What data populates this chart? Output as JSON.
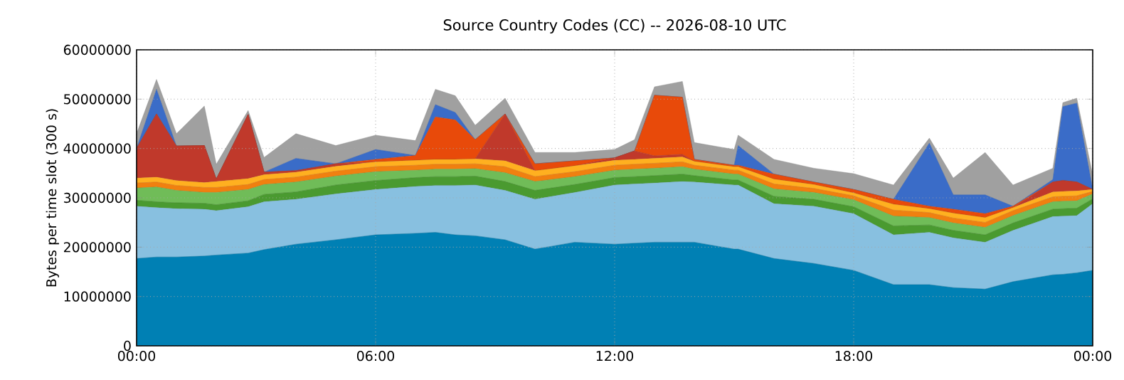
{
  "chart_data": {
    "type": "area",
    "stacked": true,
    "title": "Source Country Codes (CC) -- 2026-08-10 UTC",
    "ylabel": "Bytes per time slot (300 s)",
    "x": [
      0,
      0.5,
      1,
      1.7,
      2,
      2.8,
      3.2,
      4,
      5,
      6,
      7,
      7.5,
      8,
      8.5,
      9.25,
      10,
      11,
      12,
      12.5,
      13,
      13.7,
      14,
      15,
      15.1,
      16,
      17,
      18,
      19,
      19.9,
      20.5,
      21.3,
      22,
      23,
      23.25,
      23.6,
      24
    ],
    "xlim": [
      0,
      24
    ],
    "xticks": [
      {
        "value": 0,
        "label": "00:00"
      },
      {
        "value": 6,
        "label": "06:00"
      },
      {
        "value": 12,
        "label": "12:00"
      },
      {
        "value": 18,
        "label": "18:00"
      },
      {
        "value": 24,
        "label": "00:00"
      }
    ],
    "ylim": [
      0,
      60000000
    ],
    "yticks": [
      0,
      10000000,
      20000000,
      30000000,
      40000000,
      50000000,
      60000000
    ],
    "grid": true,
    "series": [
      {
        "color": "#0080b4",
        "values": [
          17700000,
          18000000,
          18000000,
          18200000,
          18400000,
          18800000,
          19500000,
          20600000,
          21500000,
          22500000,
          22800000,
          23000000,
          22500000,
          22300000,
          21500000,
          19600000,
          21000000,
          20600000,
          20800000,
          21000000,
          21000000,
          21000000,
          19600000,
          19600000,
          17700000,
          16700000,
          15300000,
          12400000,
          12400000,
          11800000,
          11500000,
          13000000,
          14400000,
          14500000,
          14800000,
          15300000
        ]
      },
      {
        "color": "#88c0e0",
        "values": [
          10600000,
          10000000,
          9800000,
          9500000,
          9000000,
          9400000,
          9700000,
          9100000,
          9300000,
          9200000,
          9500000,
          9500000,
          10000000,
          10300000,
          10000000,
          10100000,
          10100000,
          12000000,
          12000000,
          12000000,
          12300000,
          12200000,
          13000000,
          13000000,
          11100000,
          11600000,
          11500000,
          10100000,
          10600000,
          10100000,
          9500000,
          10400000,
          11800000,
          11800000,
          11600000,
          13500000
        ]
      },
      {
        "color": "#4a9a30",
        "values": [
          1200000,
          1200000,
          1200000,
          1200000,
          1200000,
          1200000,
          1500000,
          1500000,
          1800000,
          1800000,
          1800000,
          1800000,
          1800000,
          1800000,
          1800000,
          1800000,
          1600000,
          1500000,
          1500000,
          1500000,
          1500000,
          1300000,
          1000000,
          1000000,
          1500000,
          1400000,
          1400000,
          1800000,
          1500000,
          1500000,
          1500000,
          1500000,
          1500000,
          1500000,
          1500000,
          1000000
        ]
      },
      {
        "color": "#70bc58",
        "values": [
          2500000,
          3000000,
          2500000,
          2200000,
          2500000,
          2300000,
          2000000,
          2000000,
          1800000,
          1800000,
          1500000,
          1500000,
          1500000,
          1500000,
          1800000,
          1800000,
          1600000,
          1500000,
          1500000,
          1500000,
          1500000,
          1300000,
          1200000,
          1200000,
          1500000,
          1400000,
          1400000,
          2000000,
          1500000,
          1500000,
          1500000,
          1500000,
          1500000,
          1500000,
          1500000,
          1000000
        ]
      },
      {
        "color": "#f08010",
        "values": [
          1000000,
          1000000,
          1000000,
          1000000,
          1000000,
          1000000,
          1000000,
          1000000,
          1000000,
          1000000,
          1000000,
          1000000,
          1000000,
          1000000,
          1200000,
          1000000,
          1000000,
          1000000,
          1000000,
          1000000,
          1000000,
          800000,
          800000,
          800000,
          1000000,
          800000,
          800000,
          1200000,
          1000000,
          1000000,
          1000000,
          1000000,
          1000000,
          1000000,
          1000000,
          500000
        ]
      },
      {
        "color": "#ffb020",
        "values": [
          1000000,
          1000000,
          1000000,
          1000000,
          1200000,
          1200000,
          1000000,
          1000000,
          1000000,
          1000000,
          1000000,
          1000000,
          1000000,
          1000000,
          1200000,
          1200000,
          1200000,
          1000000,
          1000000,
          1000000,
          1000000,
          800000,
          700000,
          700000,
          1000000,
          800000,
          600000,
          1200000,
          800000,
          1000000,
          1000000,
          600000,
          1000000,
          1000000,
          1000000,
          400000
        ]
      },
      {
        "color": "#c0392b",
        "values": [
          6000000,
          12800000,
          7000000,
          7500000,
          500000,
          13000000,
          500000,
          300000,
          500000,
          0,
          0,
          0,
          0,
          0,
          9500000,
          0,
          0,
          500000,
          1700000,
          500000,
          500000,
          0,
          0,
          0,
          0,
          0,
          0,
          0,
          0,
          0,
          0,
          0,
          2000000,
          2200000,
          1800000,
          0
        ]
      },
      {
        "color": "#e84a0a",
        "values": [
          0,
          0,
          0,
          0,
          0,
          0,
          0,
          0,
          0,
          500000,
          1000000,
          8600000,
          8000000,
          3900000,
          0,
          1400000,
          1000000,
          0,
          0,
          12300000,
          11600000,
          400000,
          300000,
          300000,
          1000000,
          500000,
          700000,
          1000000,
          500000,
          800000,
          800000,
          300000,
          0,
          0,
          0,
          0
        ]
      },
      {
        "color": "#3a6cc8",
        "values": [
          0,
          5000000,
          0,
          0,
          0,
          0,
          0,
          2500000,
          0,
          2000000,
          0,
          2500000,
          1500000,
          0,
          0,
          0,
          0,
          0,
          0,
          0,
          0,
          0,
          0,
          4000000,
          0,
          0,
          0,
          0,
          12800000,
          2900000,
          3800000,
          0,
          500000,
          15000000,
          16000000,
          0
        ]
      },
      {
        "color": "#a0a0a0",
        "values": [
          3000000,
          2000000,
          2500000,
          8000000,
          3000000,
          800000,
          3000000,
          5000000,
          3700000,
          2900000,
          3000000,
          3100000,
          3400000,
          2900000,
          3200000,
          2300000,
          1700000,
          1700000,
          2300000,
          1700000,
          3200000,
          3400000,
          3200000,
          2100000,
          3000000,
          2800000,
          3200000,
          2900000,
          1000000,
          3400000,
          8600000,
          4300000,
          2300000,
          800000,
          1000000,
          2900000
        ]
      }
    ]
  }
}
